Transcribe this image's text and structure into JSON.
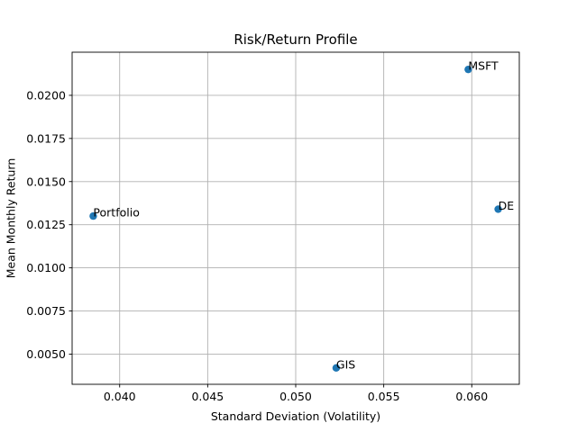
{
  "chart_data": {
    "type": "scatter",
    "title": "Risk/Return Profile",
    "xlabel": "Standard Deviation (Volatility)",
    "ylabel": "Mean Monthly Return",
    "xlim": [
      0.0373,
      0.0627
    ],
    "ylim": [
      0.00325,
      0.0225
    ],
    "xticks": [
      0.04,
      0.045,
      0.05,
      0.055,
      0.06
    ],
    "xtick_labels": [
      "0.040",
      "0.045",
      "0.050",
      "0.055",
      "0.060"
    ],
    "yticks": [
      0.005,
      0.0075,
      0.01,
      0.0125,
      0.015,
      0.0175,
      0.02
    ],
    "ytick_labels": [
      "0.0050",
      "0.0075",
      "0.0100",
      "0.0125",
      "0.0150",
      "0.0175",
      "0.0200"
    ],
    "grid": true,
    "marker_color": "#1f77b4",
    "points": [
      {
        "label": "MSFT",
        "x": 0.0598,
        "y": 0.0215
      },
      {
        "label": "DE",
        "x": 0.0615,
        "y": 0.0134
      },
      {
        "label": "Portfolio",
        "x": 0.0385,
        "y": 0.013
      },
      {
        "label": "GIS",
        "x": 0.0523,
        "y": 0.0042
      }
    ]
  }
}
